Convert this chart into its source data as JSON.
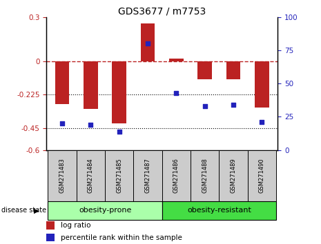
{
  "title": "GDS3677 / m7753",
  "samples": [
    "GSM271483",
    "GSM271484",
    "GSM271485",
    "GSM271487",
    "GSM271486",
    "GSM271488",
    "GSM271489",
    "GSM271490"
  ],
  "log_ratio": [
    -0.29,
    -0.32,
    -0.42,
    0.255,
    0.02,
    -0.12,
    -0.12,
    -0.31
  ],
  "percentile_rank": [
    20,
    19,
    14,
    80,
    43,
    33,
    34,
    21
  ],
  "group1_label": "obesity-prone",
  "group1_count": 4,
  "group2_label": "obesity-resistant",
  "group2_count": 4,
  "disease_state_label": "disease state",
  "ylim_left": [
    -0.6,
    0.3
  ],
  "ylim_right": [
    0,
    100
  ],
  "yticks_left": [
    -0.6,
    -0.45,
    -0.225,
    0.0,
    0.3
  ],
  "yticks_right": [
    0,
    25,
    50,
    75,
    100
  ],
  "dotted_lines": [
    -0.225,
    -0.45
  ],
  "bar_color": "#bb2222",
  "dot_color": "#2222bb",
  "group1_bg": "#aaffaa",
  "group2_bg": "#44dd44",
  "sample_box_bg": "#cccccc",
  "legend_bar_label": "log ratio",
  "legend_dot_label": "percentile rank within the sample",
  "bar_width": 0.5
}
